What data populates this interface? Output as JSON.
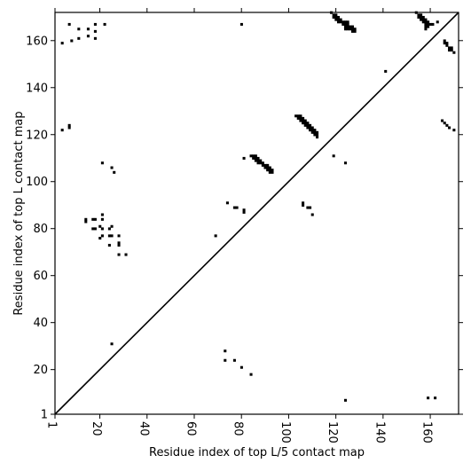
{
  "chart_data": {
    "type": "scatter",
    "title": "",
    "xlabel": "Residue index of top L/5 contact map",
    "ylabel": "Residue index of top L contact map",
    "xlim": [
      1,
      172
    ],
    "ylim": [
      1,
      172
    ],
    "x_ticks": [
      1,
      20,
      40,
      60,
      80,
      100,
      120,
      140,
      160
    ],
    "y_ticks": [
      1,
      20,
      40,
      60,
      80,
      100,
      120,
      140,
      160
    ],
    "grid": false,
    "diagonal": {
      "from": [
        1,
        1
      ],
      "to": [
        172,
        172
      ]
    },
    "series": [
      {
        "points": [
          [
            4,
            159
          ],
          [
            8,
            160
          ],
          [
            7,
            167
          ],
          [
            11,
            161
          ],
          [
            11,
            165
          ],
          [
            15,
            165
          ],
          [
            15,
            162
          ],
          [
            18,
            161
          ],
          [
            18,
            164
          ],
          [
            18,
            167
          ],
          [
            22,
            167
          ],
          [
            4,
            122
          ],
          [
            7,
            123
          ],
          [
            7,
            124
          ],
          [
            14,
            84
          ],
          [
            14,
            83
          ],
          [
            17,
            84
          ],
          [
            18,
            84
          ],
          [
            17,
            80
          ],
          [
            18,
            80
          ],
          [
            21,
            86
          ],
          [
            21,
            84
          ],
          [
            20,
            81
          ],
          [
            21,
            80
          ],
          [
            24,
            80
          ],
          [
            25,
            81
          ],
          [
            21,
            77
          ],
          [
            20,
            76
          ],
          [
            24,
            77
          ],
          [
            25,
            77
          ],
          [
            24,
            73
          ],
          [
            28,
            77
          ],
          [
            28,
            74
          ],
          [
            28,
            73
          ],
          [
            28,
            69
          ],
          [
            31,
            69
          ],
          [
            21,
            108
          ],
          [
            25,
            106
          ],
          [
            26,
            104
          ],
          [
            25,
            31
          ],
          [
            69,
            77
          ],
          [
            74,
            91
          ],
          [
            77,
            89
          ],
          [
            78,
            89
          ],
          [
            81,
            88
          ],
          [
            81,
            87
          ],
          [
            80,
            167
          ],
          [
            81,
            110
          ],
          [
            84,
            111
          ],
          [
            85,
            111
          ],
          [
            86,
            111
          ],
          [
            85,
            110
          ],
          [
            86,
            110
          ],
          [
            87,
            110
          ],
          [
            86,
            109
          ],
          [
            87,
            109
          ],
          [
            88,
            109
          ],
          [
            87,
            108
          ],
          [
            88,
            108
          ],
          [
            89,
            108
          ],
          [
            89,
            107
          ],
          [
            90,
            107
          ],
          [
            91,
            107
          ],
          [
            90,
            106
          ],
          [
            91,
            106
          ],
          [
            92,
            106
          ],
          [
            91,
            105
          ],
          [
            92,
            105
          ],
          [
            93,
            105
          ],
          [
            92,
            104
          ],
          [
            93,
            104
          ],
          [
            103,
            128
          ],
          [
            104,
            128
          ],
          [
            105,
            128
          ],
          [
            104,
            127
          ],
          [
            105,
            127
          ],
          [
            106,
            127
          ],
          [
            105,
            126
          ],
          [
            106,
            126
          ],
          [
            107,
            126
          ],
          [
            106,
            125
          ],
          [
            107,
            125
          ],
          [
            108,
            125
          ],
          [
            107,
            124
          ],
          [
            108,
            124
          ],
          [
            109,
            124
          ],
          [
            108,
            123
          ],
          [
            109,
            123
          ],
          [
            110,
            123
          ],
          [
            109,
            122
          ],
          [
            110,
            122
          ],
          [
            111,
            122
          ],
          [
            110,
            121
          ],
          [
            111,
            121
          ],
          [
            112,
            121
          ],
          [
            111,
            120
          ],
          [
            112,
            120
          ],
          [
            112,
            119
          ],
          [
            106,
            91
          ],
          [
            106,
            90
          ],
          [
            108,
            89
          ],
          [
            109,
            89
          ],
          [
            110,
            86
          ],
          [
            119,
            111
          ],
          [
            124,
            108
          ],
          [
            141,
            147
          ],
          [
            118,
            172
          ],
          [
            119,
            171
          ],
          [
            120,
            171
          ],
          [
            119,
            170
          ],
          [
            120,
            170
          ],
          [
            121,
            170
          ],
          [
            120,
            169
          ],
          [
            121,
            169
          ],
          [
            122,
            169
          ],
          [
            121,
            168
          ],
          [
            122,
            168
          ],
          [
            123,
            168
          ],
          [
            124,
            168
          ],
          [
            125,
            168
          ],
          [
            123,
            167
          ],
          [
            124,
            167
          ],
          [
            125,
            167
          ],
          [
            124,
            166
          ],
          [
            125,
            166
          ],
          [
            126,
            166
          ],
          [
            127,
            166
          ],
          [
            124,
            165
          ],
          [
            125,
            165
          ],
          [
            126,
            165
          ],
          [
            127,
            165
          ],
          [
            128,
            165
          ],
          [
            127,
            164
          ],
          [
            128,
            164
          ],
          [
            154,
            172
          ],
          [
            155,
            171
          ],
          [
            156,
            171
          ],
          [
            155,
            170
          ],
          [
            156,
            170
          ],
          [
            157,
            170
          ],
          [
            156,
            169
          ],
          [
            157,
            169
          ],
          [
            158,
            169
          ],
          [
            157,
            168
          ],
          [
            158,
            168
          ],
          [
            159,
            168
          ],
          [
            158,
            167
          ],
          [
            159,
            167
          ],
          [
            160,
            167
          ],
          [
            158,
            166
          ],
          [
            159,
            166
          ],
          [
            158,
            165
          ],
          [
            161,
            167
          ],
          [
            163,
            168
          ],
          [
            166,
            160
          ],
          [
            166,
            159
          ],
          [
            167,
            159
          ],
          [
            167,
            158
          ],
          [
            168,
            157
          ],
          [
            169,
            157
          ],
          [
            168,
            156
          ],
          [
            169,
            156
          ],
          [
            170,
            155
          ],
          [
            165,
            126
          ],
          [
            166,
            125
          ],
          [
            167,
            124
          ],
          [
            168,
            123
          ],
          [
            170,
            122
          ],
          [
            73,
            28
          ],
          [
            73,
            24
          ],
          [
            77,
            24
          ],
          [
            80,
            21
          ],
          [
            84,
            18
          ],
          [
            124,
            7
          ],
          [
            159,
            8
          ],
          [
            162,
            8
          ]
        ]
      }
    ]
  }
}
